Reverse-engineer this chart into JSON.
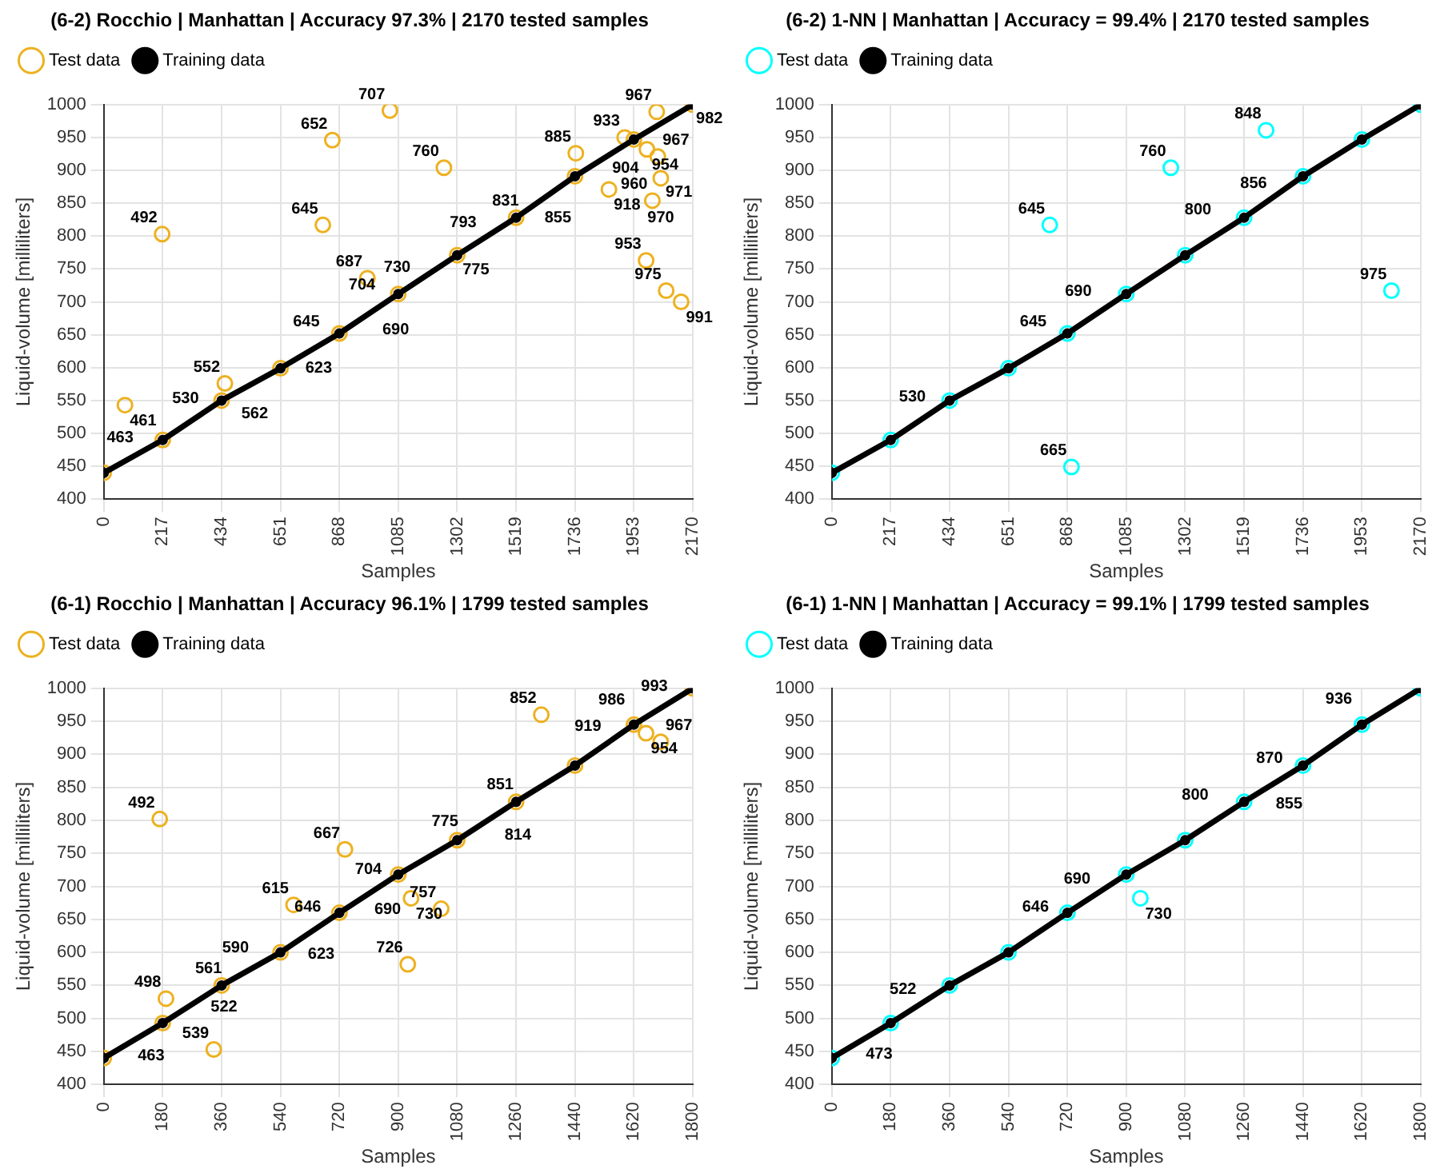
{
  "chart_data": [
    {
      "type": "scatter",
      "title": "(6-2) Rocchio | Manhattan | Accuracy 97.3% | 2170 tested samples",
      "xlabel": "Samples",
      "ylabel": "Liquid-volume [milliliters]",
      "xlim": [
        0,
        2170
      ],
      "xticks": [
        0,
        217,
        434,
        651,
        868,
        1085,
        1302,
        1519,
        1736,
        1953,
        2170
      ],
      "ylim": [
        400,
        1000
      ],
      "yticks": [
        400,
        450,
        500,
        550,
        600,
        650,
        700,
        750,
        800,
        850,
        900,
        950,
        1000
      ],
      "grid": true,
      "legend": "top left",
      "marker": "circle",
      "series": [
        {
          "name": "Test data",
          "type": "scatter",
          "color": "#edb120",
          "x": [
            0,
            217,
            434,
            651,
            868,
            1085,
            1302,
            1519,
            1736,
            1953,
            2170,
            1919,
            446,
            1054,
            842,
            1253,
            1739,
            215,
            807,
            971,
            78,
            1861,
            2021,
            1998,
            2072,
            2127,
            2001,
            2041,
            2052,
            2037
          ],
          "values": [
            440,
            490,
            550,
            599,
            652,
            712,
            771,
            828,
            891,
            947,
            1000,
            950,
            576,
            991,
            946,
            904,
            926,
            803,
            817,
            736,
            543,
            871,
            854,
            763,
            717,
            700,
            932,
            921,
            888,
            989
          ]
        },
        {
          "name": "Training data",
          "type": "line",
          "color": "#000000",
          "x": [
            0,
            217,
            434,
            651,
            868,
            1085,
            1302,
            1519,
            1736,
            1953,
            2170
          ],
          "values": [
            440,
            490,
            550,
            599,
            652,
            712,
            771,
            828,
            891,
            947,
            1000
          ]
        }
      ],
      "annotations": [
        {
          "text": "707",
          "x": 1054,
          "y": 991
        },
        {
          "text": "652",
          "x": 842,
          "y": 946
        },
        {
          "text": "760",
          "x": 1253,
          "y": 904
        },
        {
          "text": "885",
          "x": 1739,
          "y": 926
        },
        {
          "text": "492",
          "x": 215,
          "y": 803
        },
        {
          "text": "645",
          "x": 807,
          "y": 817
        },
        {
          "text": "687",
          "x": 971,
          "y": 736
        },
        {
          "text": "461",
          "x": 78,
          "y": 543
        },
        {
          "text": "918",
          "x": 1861,
          "y": 871
        },
        {
          "text": "960",
          "x": 2021,
          "y": 854
        },
        {
          "text": "953",
          "x": 1998,
          "y": 763
        },
        {
          "text": "975",
          "x": 2072,
          "y": 717
        },
        {
          "text": "991",
          "x": 2127,
          "y": 700
        },
        {
          "text": "954",
          "x": 2001,
          "y": 932
        },
        {
          "text": "967",
          "x": 2041,
          "y": 921
        },
        {
          "text": "971",
          "x": 2052,
          "y": 891
        },
        {
          "text": "970",
          "x": 2052,
          "y": 884
        },
        {
          "text": "967",
          "x": 2037,
          "y": 989
        },
        {
          "text": "933",
          "x": 1919,
          "y": 950
        },
        {
          "text": "904",
          "x": 1802,
          "y": 903
        },
        {
          "text": "831",
          "x": 1547,
          "y": 829
        },
        {
          "text": "793",
          "x": 1391,
          "y": 796
        },
        {
          "text": "775",
          "x": 1304,
          "y": 773
        },
        {
          "text": "730",
          "x": 1148,
          "y": 728
        },
        {
          "text": "704",
          "x": 1018,
          "y": 701
        },
        {
          "text": "690",
          "x": 979,
          "y": 691
        },
        {
          "text": "645",
          "x": 813,
          "y": 645
        },
        {
          "text": "623",
          "x": 725,
          "y": 623
        },
        {
          "text": "552",
          "x": 446,
          "y": 576
        },
        {
          "text": "562",
          "x": 489,
          "y": 554
        },
        {
          "text": "530",
          "x": 368,
          "y": 529
        },
        {
          "text": "463",
          "x": 127,
          "y": 469
        },
        {
          "text": "855",
          "x": 1606,
          "y": 852
        },
        {
          "text": "982",
          "x": 2076,
          "y": 979
        }
      ]
    },
    {
      "type": "scatter",
      "title": "(6-2) 1-NN | Manhattan | Accuracy = 99.4% | 2170 tested samples",
      "xlabel": "Samples",
      "ylabel": "Liquid-volume [milliliters]",
      "xlim": [
        0,
        2170
      ],
      "xticks": [
        0,
        217,
        434,
        651,
        868,
        1085,
        1302,
        1519,
        1736,
        1953,
        2170
      ],
      "ylim": [
        400,
        1000
      ],
      "yticks": [
        400,
        450,
        500,
        550,
        600,
        650,
        700,
        750,
        800,
        850,
        900,
        950,
        1000
      ],
      "grid": true,
      "legend": "top left",
      "marker": "circle",
      "series": [
        {
          "name": "Test data",
          "type": "scatter",
          "color": "#00ffff",
          "x": [
            0,
            217,
            434,
            651,
            868,
            1085,
            1302,
            1519,
            1736,
            1953,
            2170,
            1600,
            1249,
            803,
            2062,
            883
          ],
          "values": [
            440,
            490,
            550,
            599,
            652,
            712,
            771,
            828,
            891,
            947,
            1000,
            961,
            904,
            817,
            717,
            449
          ]
        },
        {
          "name": "Training data",
          "type": "line",
          "color": "#000000",
          "x": [
            0,
            217,
            434,
            651,
            868,
            1085,
            1302,
            1519,
            1736,
            1953,
            2170
          ],
          "values": [
            440,
            490,
            550,
            599,
            652,
            712,
            771,
            828,
            891,
            947,
            1000
          ]
        }
      ],
      "annotations": [
        {
          "text": "848",
          "x": 1600,
          "y": 961
        },
        {
          "text": "760",
          "x": 1249,
          "y": 904
        },
        {
          "text": "645",
          "x": 803,
          "y": 817
        },
        {
          "text": "975",
          "x": 2062,
          "y": 717
        },
        {
          "text": "665",
          "x": 883,
          "y": 449
        },
        {
          "text": "856",
          "x": 1621,
          "y": 856
        },
        {
          "text": "800",
          "x": 1416,
          "y": 815
        },
        {
          "text": "690",
          "x": 975,
          "y": 691
        },
        {
          "text": "645",
          "x": 809,
          "y": 645
        },
        {
          "text": "530",
          "x": 364,
          "y": 531
        }
      ]
    },
    {
      "type": "scatter",
      "title": "(6-1) Rocchio | Manhattan | Accuracy 96.1% | 1799 tested samples",
      "xlabel": "Samples",
      "ylabel": "Liquid-volume [milliliters]",
      "xlim": [
        0,
        1800
      ],
      "xticks": [
        0,
        180,
        360,
        540,
        720,
        900,
        1080,
        1260,
        1440,
        1620,
        1800
      ],
      "ylim": [
        400,
        1000
      ],
      "yticks": [
        400,
        450,
        500,
        550,
        600,
        650,
        700,
        750,
        800,
        850,
        900,
        950,
        1000
      ],
      "grid": true,
      "legend": "top left",
      "marker": "circle",
      "series": [
        {
          "name": "Test data",
          "type": "scatter",
          "color": "#edb120",
          "x": [
            0,
            180,
            360,
            540,
            720,
            900,
            1080,
            1260,
            1440,
            1620,
            1800,
            1337,
            171,
            737,
            580,
            939,
            1031,
            929,
            190,
            336,
            1657,
            1702
          ],
          "values": [
            440,
            493,
            550,
            600,
            660,
            718,
            770,
            828,
            883,
            945,
            1000,
            960,
            802,
            756,
            672,
            682,
            666,
            582,
            530,
            453,
            932,
            919
          ]
        },
        {
          "name": "Training data",
          "type": "line",
          "color": "#000000",
          "x": [
            0,
            180,
            360,
            540,
            720,
            900,
            1080,
            1260,
            1440,
            1620,
            1800
          ],
          "values": [
            440,
            493,
            550,
            600,
            660,
            718,
            770,
            828,
            883,
            945,
            1000
          ]
        }
      ],
      "annotations": [
        {
          "text": "852",
          "x": 1337,
          "y": 960
        },
        {
          "text": "492",
          "x": 171,
          "y": 802
        },
        {
          "text": "667",
          "x": 737,
          "y": 756
        },
        {
          "text": "615",
          "x": 580,
          "y": 672
        },
        {
          "text": "730",
          "x": 939,
          "y": 682
        },
        {
          "text": "757",
          "x": 1031,
          "y": 666
        },
        {
          "text": "726",
          "x": 929,
          "y": 582
        },
        {
          "text": "498",
          "x": 190,
          "y": 530
        },
        {
          "text": "539",
          "x": 336,
          "y": 453
        },
        {
          "text": "954",
          "x": 1657,
          "y": 932
        },
        {
          "text": "967",
          "x": 1702,
          "y": 919
        },
        {
          "text": "814",
          "x": 1210,
          "y": 802
        },
        {
          "text": "775",
          "x": 1098,
          "y": 774
        },
        {
          "text": "704",
          "x": 864,
          "y": 701
        },
        {
          "text": "690",
          "x": 812,
          "y": 689
        },
        {
          "text": "851",
          "x": 1267,
          "y": 830
        },
        {
          "text": "919",
          "x": 1535,
          "y": 918
        },
        {
          "text": "646",
          "x": 679,
          "y": 644
        },
        {
          "text": "623",
          "x": 609,
          "y": 621
        },
        {
          "text": "590",
          "x": 458,
          "y": 582
        },
        {
          "text": "561",
          "x": 390,
          "y": 575
        },
        {
          "text": "522",
          "x": 268,
          "y": 517
        },
        {
          "text": "463",
          "x": 89,
          "y": 468
        },
        {
          "text": "986",
          "x": 1608,
          "y": 958
        },
        {
          "text": "993",
          "x": 1738,
          "y": 979
        }
      ]
    },
    {
      "type": "scatter",
      "title": "(6-1) 1-NN | Manhattan | Accuracy = 99.1% | 1799 tested samples",
      "xlabel": "Samples",
      "ylabel": "Liquid-volume [milliliters]",
      "xlim": [
        0,
        1800
      ],
      "xticks": [
        0,
        180,
        360,
        540,
        720,
        900,
        1080,
        1260,
        1440,
        1620,
        1800
      ],
      "ylim": [
        400,
        1000
      ],
      "yticks": [
        400,
        450,
        500,
        550,
        600,
        650,
        700,
        750,
        800,
        850,
        900,
        950,
        1000
      ],
      "grid": true,
      "legend": "top left",
      "marker": "circle",
      "series": [
        {
          "name": "Test data",
          "type": "scatter",
          "color": "#00ffff",
          "x": [
            0,
            180,
            360,
            540,
            720,
            900,
            1080,
            1260,
            1440,
            1620,
            1800,
            943
          ],
          "values": [
            440,
            493,
            550,
            600,
            660,
            718,
            770,
            828,
            883,
            945,
            1000,
            682
          ]
        },
        {
          "name": "Training data",
          "type": "line",
          "color": "#000000",
          "x": [
            0,
            180,
            360,
            540,
            720,
            900,
            1080,
            1260,
            1440,
            1620,
            1800
          ],
          "values": [
            440,
            493,
            550,
            600,
            660,
            718,
            770,
            828,
            883,
            945,
            1000
          ]
        }
      ],
      "annotations": [
        {
          "text": "936",
          "x": 1605,
          "y": 959
        },
        {
          "text": "870",
          "x": 1393,
          "y": 870
        },
        {
          "text": "855",
          "x": 1342,
          "y": 849
        },
        {
          "text": "800",
          "x": 1166,
          "y": 814
        },
        {
          "text": "690",
          "x": 805,
          "y": 687
        },
        {
          "text": "730",
          "x": 943,
          "y": 682
        },
        {
          "text": "646",
          "x": 678,
          "y": 644
        },
        {
          "text": "522",
          "x": 273,
          "y": 519
        },
        {
          "text": "473",
          "x": 89,
          "y": 470
        }
      ]
    }
  ]
}
